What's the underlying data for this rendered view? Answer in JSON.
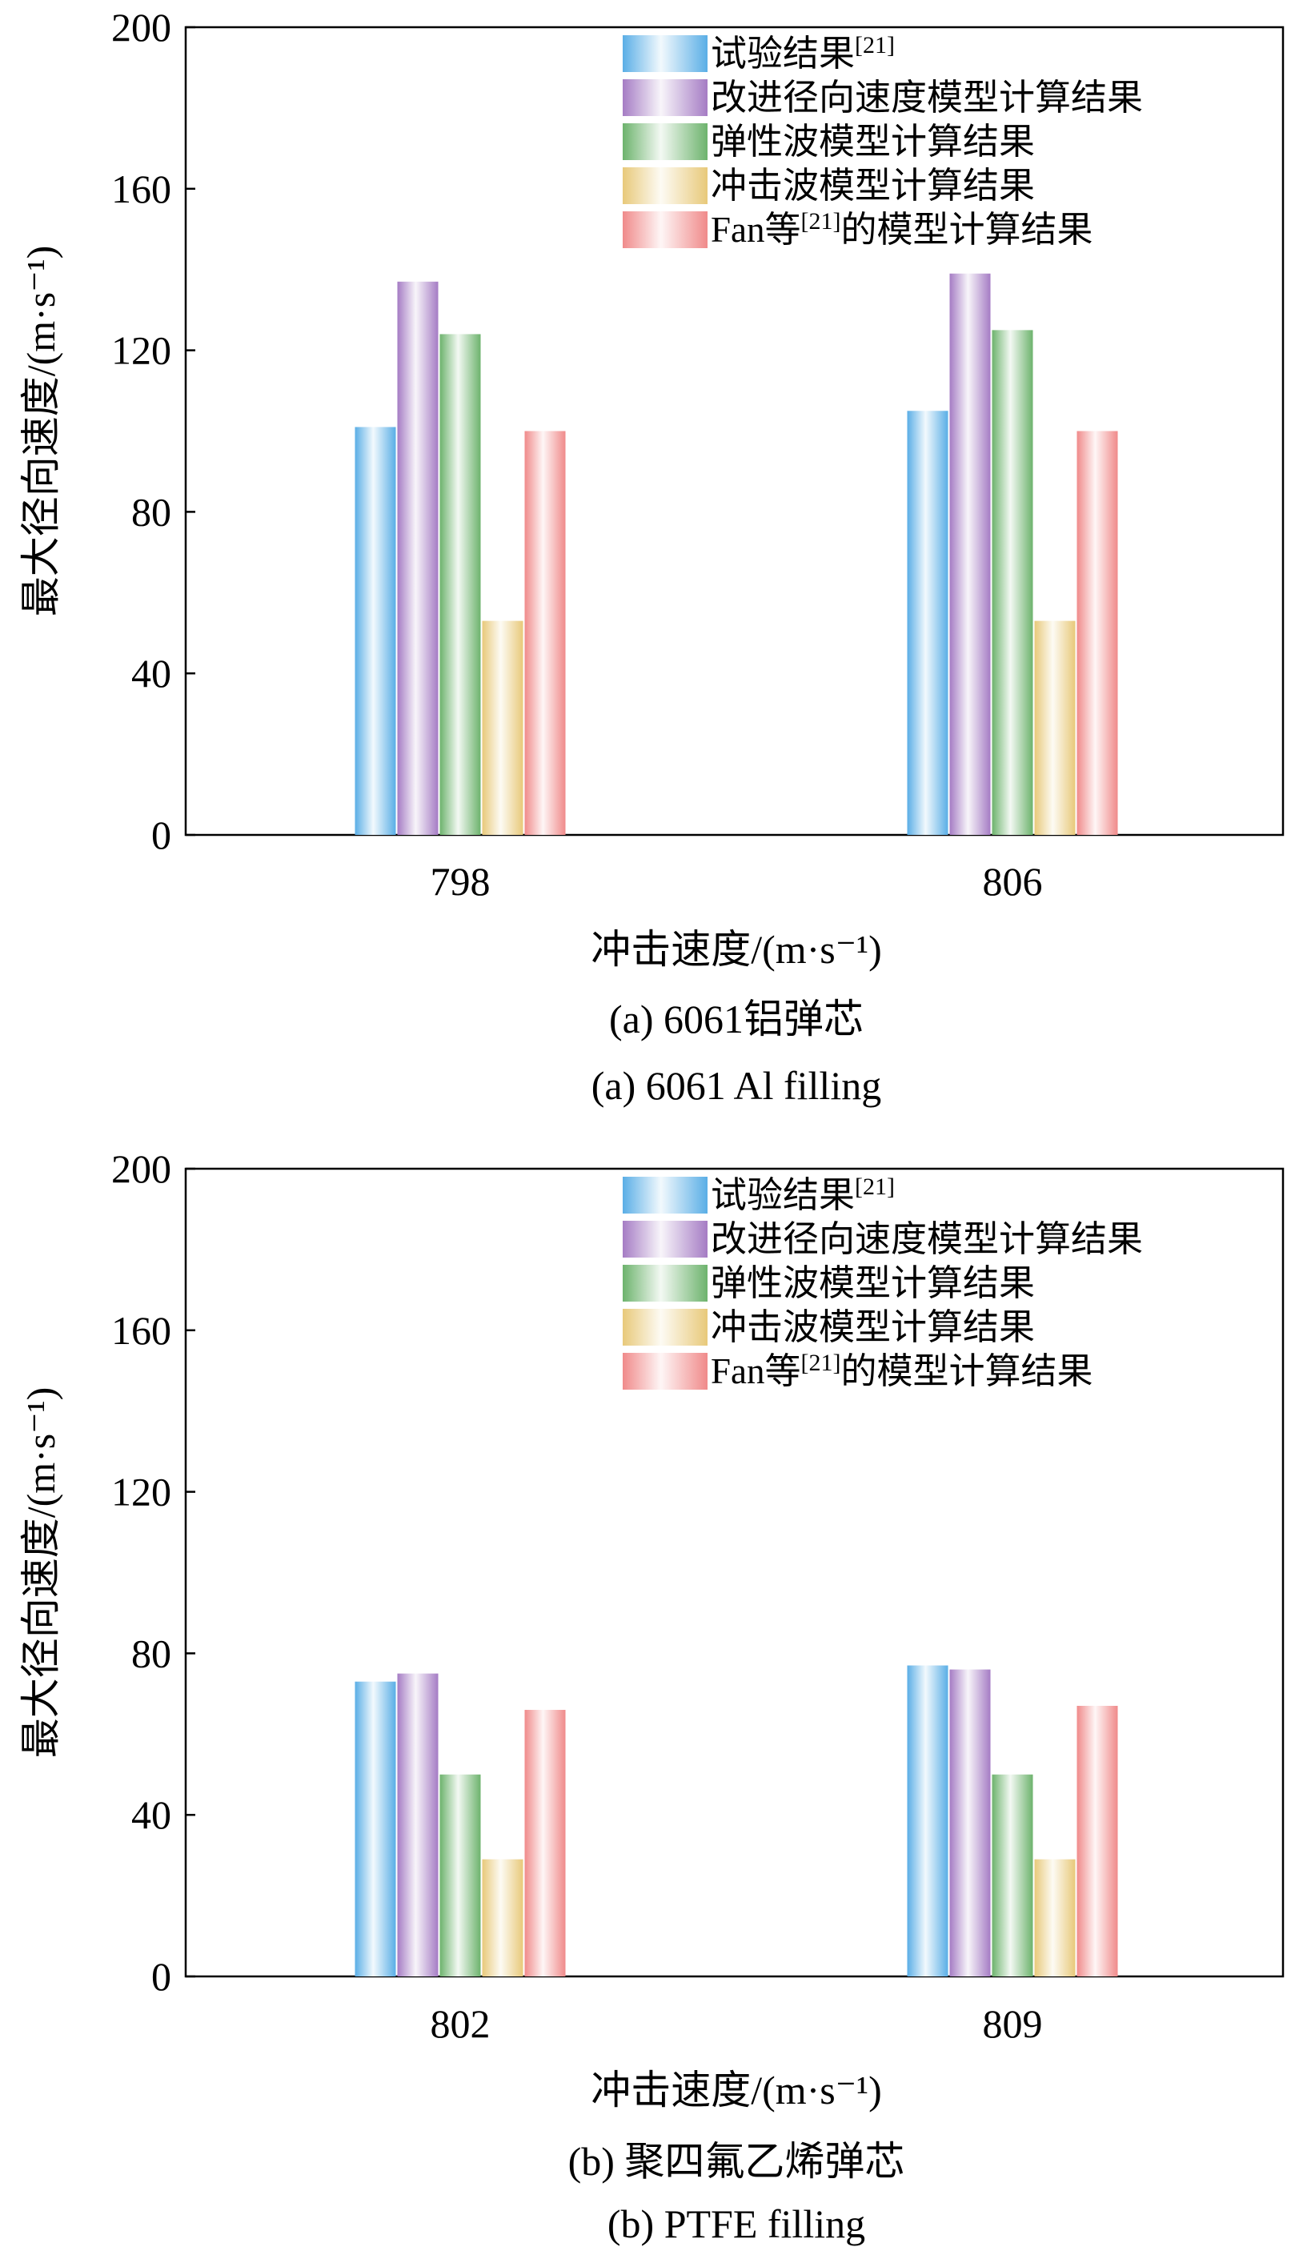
{
  "chart_data": [
    {
      "type": "bar",
      "caption_cn": "(a) 6061铝弹芯",
      "caption_en": "(a) 6061 Al filling",
      "xlabel": "冲击速度/(m·s⁻¹)",
      "ylabel": "最大径向速度/(m·s⁻¹)",
      "ylim": [
        0,
        200
      ],
      "yticks": [
        0,
        40,
        80,
        120,
        160,
        200
      ],
      "grid": false,
      "legend_position": "top-right",
      "categories": [
        "798",
        "806"
      ],
      "series": [
        {
          "name": "试验结果[21]",
          "color": "#5aaee6",
          "values": [
            101,
            105
          ]
        },
        {
          "name": "改进径向速度模型计算结果",
          "color": "#a57cc4",
          "values": [
            137,
            139
          ]
        },
        {
          "name": "弹性波模型计算结果",
          "color": "#6db36d",
          "values": [
            124,
            125
          ]
        },
        {
          "name": "冲击波模型计算结果",
          "color": "#e8c97a",
          "values": [
            53,
            53
          ]
        },
        {
          "name": "Fan等[21]的模型计算结果",
          "color": "#f08a8a",
          "values": [
            100,
            100
          ]
        }
      ]
    },
    {
      "type": "bar",
      "caption_cn": "(b) 聚四氟乙烯弹芯",
      "caption_en": "(b) PTFE filling",
      "xlabel": "冲击速度/(m·s⁻¹)",
      "ylabel": "最大径向速度/(m·s⁻¹)",
      "ylim": [
        0,
        200
      ],
      "yticks": [
        0,
        40,
        80,
        120,
        160,
        200
      ],
      "grid": false,
      "legend_position": "top-right",
      "categories": [
        "802",
        "809"
      ],
      "series": [
        {
          "name": "试验结果[21]",
          "color": "#5aaee6",
          "values": [
            73,
            77
          ]
        },
        {
          "name": "改进径向速度模型计算结果",
          "color": "#a57cc4",
          "values": [
            75,
            76
          ]
        },
        {
          "name": "弹性波模型计算结果",
          "color": "#6db36d",
          "values": [
            50,
            50
          ]
        },
        {
          "name": "冲击波模型计算结果",
          "color": "#e8c97a",
          "values": [
            29,
            29
          ]
        },
        {
          "name": "Fan等[21]的模型计算结果",
          "color": "#f08a8a",
          "values": [
            66,
            67
          ]
        }
      ]
    }
  ]
}
